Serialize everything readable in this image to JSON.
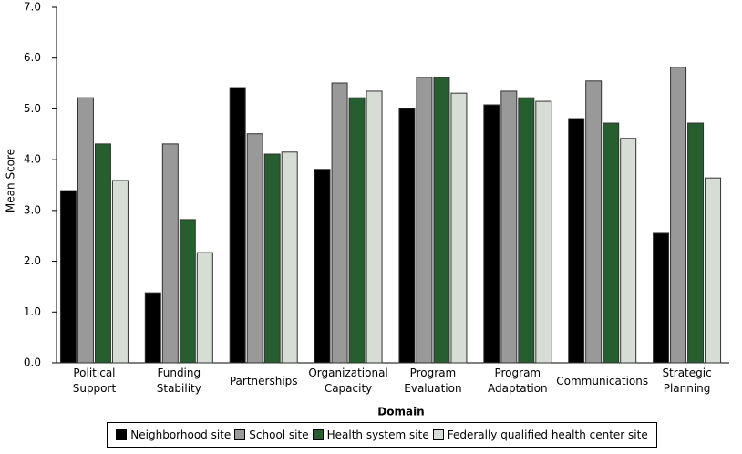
{
  "chart_data": {
    "type": "bar",
    "x_label": "Domain",
    "y_label": "Mean Score",
    "categories": [
      "Political Support",
      "Funding Stability",
      "Partnerships",
      "Organizational Capacity",
      "Program Evaluation",
      "Program Adaptation",
      "Communications",
      "Strategic Planning"
    ],
    "series": [
      {
        "name": "Neighborhood site",
        "color": "#000000",
        "values": [
          3.39,
          1.38,
          5.42,
          3.81,
          5.01,
          5.08,
          4.81,
          2.55
        ]
      },
      {
        "name": "School site",
        "color": "#999999",
        "values": [
          5.22,
          4.31,
          4.51,
          5.51,
          5.62,
          5.35,
          5.55,
          5.82
        ]
      },
      {
        "name": "Health system site",
        "color": "#265e2f",
        "values": [
          4.31,
          2.82,
          4.11,
          5.22,
          5.62,
          5.22,
          4.72,
          4.72
        ]
      },
      {
        "name": "Federally qualified health center site",
        "color": "#d5ddd5",
        "values": [
          3.59,
          2.17,
          4.15,
          5.35,
          5.31,
          5.15,
          4.42,
          3.64
        ]
      }
    ],
    "ylim": [
      0,
      7
    ],
    "yticks": [
      {
        "value": 0,
        "label": "0.0"
      },
      {
        "value": 1,
        "label": "1.0"
      },
      {
        "value": 2,
        "label": "2.0"
      },
      {
        "value": 3,
        "label": "3.0"
      },
      {
        "value": 4,
        "label": "4.0"
      },
      {
        "value": 5,
        "label": "5.0"
      },
      {
        "value": 6,
        "label": "6.0"
      },
      {
        "value": 7,
        "label": "7.0"
      }
    ],
    "grid": false,
    "legend": "bottom"
  }
}
